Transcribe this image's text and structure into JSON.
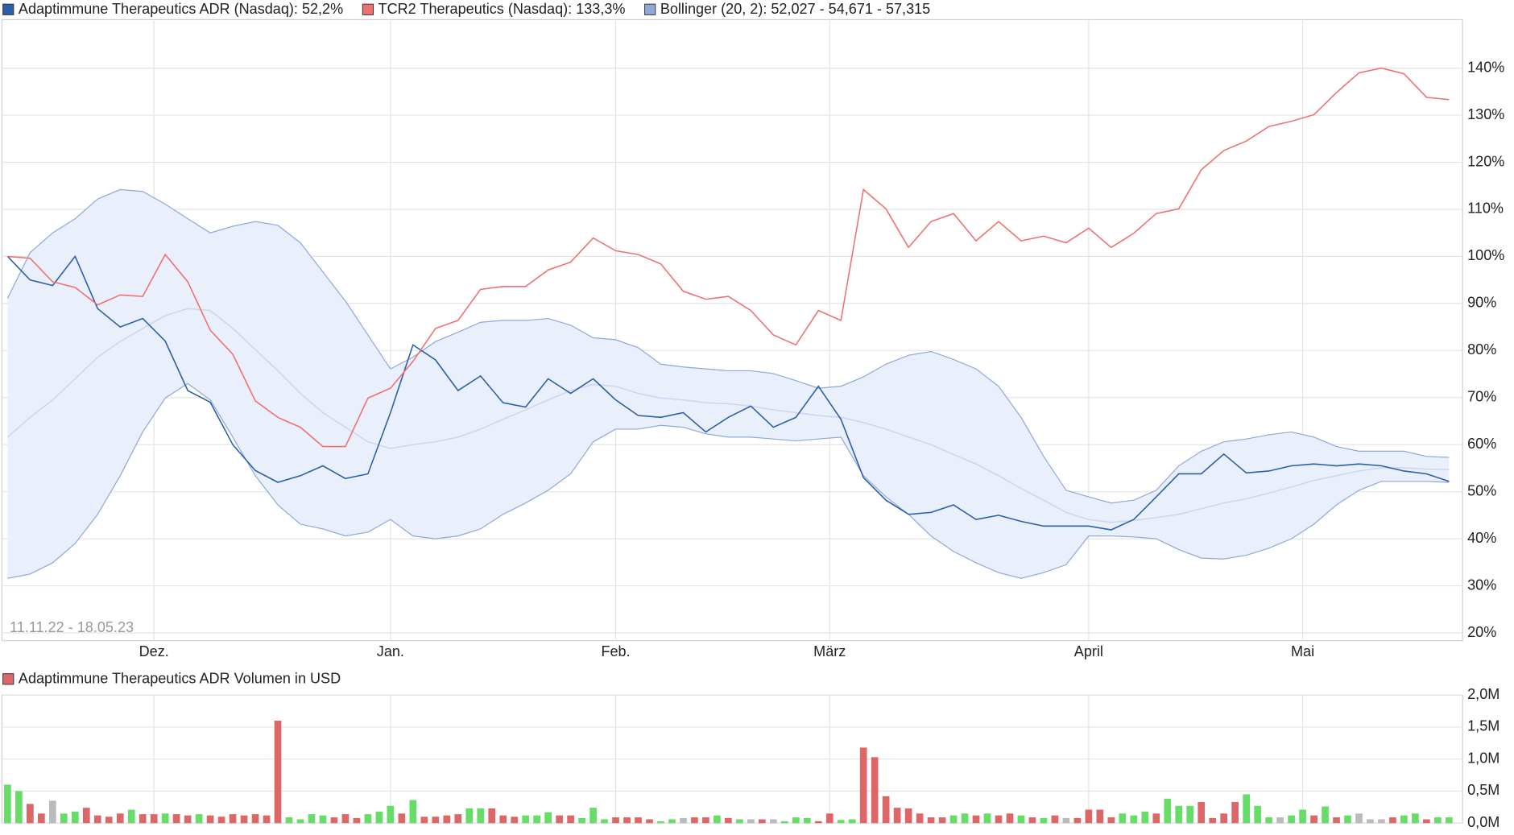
{
  "chart_data": [
    {
      "type": "line",
      "annotation": "11.11.22 - 18.05.23",
      "x": [
        0,
        2,
        4,
        6,
        8,
        10,
        12,
        14,
        16,
        18,
        20,
        22,
        24,
        26,
        28,
        30,
        32,
        34,
        36,
        38,
        40,
        42,
        44,
        46,
        48,
        50,
        52,
        54,
        56,
        58,
        60,
        62,
        64,
        66,
        68,
        70,
        72,
        74,
        76,
        78,
        80,
        82,
        84,
        86,
        88,
        90,
        92,
        94,
        96,
        98,
        100,
        102,
        104,
        106,
        108,
        110,
        112,
        114,
        116,
        118,
        120,
        122,
        124,
        126,
        128
      ],
      "xlim": [
        -0.5,
        129.2
      ],
      "xticks": [
        {
          "value": 13,
          "label": "Dez."
        },
        {
          "value": 34,
          "label": "Jan."
        },
        {
          "value": 54,
          "label": "Feb."
        },
        {
          "value": 73,
          "label": "März"
        },
        {
          "value": 96,
          "label": "April"
        },
        {
          "value": 115,
          "label": "Mai"
        }
      ],
      "ylim": [
        18.35,
        150.3
      ],
      "yticks": [
        {
          "value": 20,
          "label": "20%"
        },
        {
          "value": 30,
          "label": "30%"
        },
        {
          "value": 40,
          "label": "40%"
        },
        {
          "value": 50,
          "label": "50%"
        },
        {
          "value": 60,
          "label": "60%"
        },
        {
          "value": 70,
          "label": "70%"
        },
        {
          "value": 80,
          "label": "80%"
        },
        {
          "value": 90,
          "label": "90%"
        },
        {
          "value": 100,
          "label": "100%"
        },
        {
          "value": 110,
          "label": "110%"
        },
        {
          "value": 120,
          "label": "120%"
        },
        {
          "value": 130,
          "label": "130%"
        },
        {
          "value": 140,
          "label": "140%"
        }
      ],
      "grid": true,
      "series": [
        {
          "name": "Adaptimmune Therapeutics ADR (Nasdaq): 52,2%",
          "color": "#2a5fa8",
          "values": [
            100,
            95,
            93.8,
            100,
            88.9,
            85,
            86.8,
            82,
            71.5,
            69,
            60,
            54.5,
            52,
            53.4,
            55.5,
            52.8,
            53.8,
            66.8,
            81.2,
            78,
            71.5,
            74.6,
            68.9,
            68,
            74,
            70.9,
            74,
            69.5,
            66.2,
            65.8,
            66.8,
            62.7,
            65.8,
            68.2,
            63.7,
            65.8,
            72.4,
            65.4,
            53,
            48.2,
            45.2,
            45.6,
            47.2,
            44.1,
            45,
            43.7,
            42.7,
            42.7,
            42.7,
            41.9,
            44.1,
            48.9,
            53.8,
            53.8,
            58,
            54,
            54.4,
            55.5,
            55.9,
            55.5,
            55.9,
            55.5,
            54.4,
            53.8,
            52.2
          ]
        },
        {
          "name": "TCR2 Therapeutics (Nasdaq): 133,3%",
          "color": "#f07070",
          "values": [
            100,
            99.6,
            94.6,
            93.4,
            89.7,
            91.8,
            91.5,
            100.4,
            94.6,
            84.3,
            79.2,
            69.3,
            65.8,
            63.7,
            59.6,
            59.6,
            69.9,
            72,
            77.7,
            84.7,
            86.4,
            93,
            93.6,
            93.6,
            97.1,
            98.8,
            103.9,
            101.2,
            100.4,
            98.4,
            92.6,
            90.9,
            91.5,
            88.5,
            83.3,
            81.2,
            88.5,
            86.4,
            114.2,
            110.1,
            101.9,
            107.4,
            109.1,
            103.3,
            107.4,
            103.3,
            104.3,
            102.9,
            106,
            101.9,
            104.9,
            109.1,
            110.1,
            118.4,
            122.5,
            124.5,
            127.6,
            128.7,
            130.1,
            134.8,
            139,
            140,
            138.8,
            133.8,
            133.3
          ]
        }
      ],
      "bands": {
        "name": "Bollinger (20, 2): 52,027 - 54,671 - 57,315",
        "color": "#8fa8d8",
        "fill": "#e9effb",
        "middle_color": "#c9d5ee",
        "upper": [
          91.1,
          100.8,
          105,
          108,
          112.2,
          114.2,
          113.8,
          111.1,
          108,
          105,
          106.4,
          107.4,
          106.6,
          102.9,
          96.7,
          90.5,
          83.3,
          76.1,
          78.6,
          81.9,
          83.9,
          86,
          86.4,
          86.4,
          86.8,
          85.4,
          82.7,
          82.3,
          80.6,
          77.1,
          76.5,
          76.1,
          75.7,
          75.7,
          75.1,
          73.6,
          72,
          72.4,
          74.4,
          77.1,
          79,
          79.8,
          78.1,
          76.1,
          72.4,
          65.8,
          57.5,
          50.3,
          48.9,
          47.6,
          48.2,
          50.3,
          55.5,
          58.6,
          60.6,
          61.2,
          62.1,
          62.7,
          61.6,
          59.6,
          58.6,
          58.6,
          58.6,
          57.5,
          57.3
        ],
        "middle": [
          61.6,
          65.8,
          69.5,
          74,
          78.6,
          81.9,
          84.7,
          87.4,
          88.9,
          88.5,
          84.7,
          80.2,
          75.7,
          70.9,
          66.8,
          63.7,
          60.6,
          59.2,
          60,
          60.6,
          61.6,
          63.3,
          65.4,
          67.4,
          69.5,
          71.5,
          72.8,
          72.4,
          70.9,
          69.9,
          69.5,
          68.9,
          68.7,
          68.2,
          67.4,
          66.8,
          66.2,
          65.8,
          64.7,
          63.3,
          61.6,
          60,
          57.9,
          55.9,
          53.4,
          50.7,
          48.2,
          45.6,
          44.1,
          43.5,
          43.9,
          44.5,
          45.2,
          46.4,
          47.6,
          48.5,
          49.7,
          51,
          52.4,
          53.4,
          54.4,
          55.1,
          55.1,
          54.8,
          54.7
        ],
        "lower": [
          31.6,
          32.5,
          34.9,
          39,
          45.2,
          53.4,
          62.7,
          69.9,
          73,
          69.5,
          61.6,
          53.4,
          47.2,
          43.1,
          42.1,
          40.6,
          41.4,
          44.1,
          40.6,
          40,
          40.6,
          42.1,
          45.2,
          47.6,
          50.3,
          53.8,
          60.6,
          63.3,
          63.3,
          64.1,
          63.7,
          62.3,
          61.6,
          61.6,
          61.2,
          60.8,
          61.2,
          61.6,
          53.4,
          48.9,
          45.2,
          40.6,
          37.3,
          34.9,
          32.8,
          31.6,
          32.8,
          34.5,
          40.6,
          40.6,
          40.4,
          40,
          37.7,
          35.9,
          35.7,
          36.5,
          38,
          40,
          43.1,
          47.2,
          50.3,
          52.2,
          52.2,
          52.2,
          52
        ]
      }
    },
    {
      "type": "bar",
      "title": "Adaptimmune Therapeutics ADR Volumen in USD",
      "color": "#dd6666",
      "x": [
        0,
        1,
        2,
        3,
        4,
        5,
        6,
        7,
        8,
        9,
        10,
        11,
        12,
        13,
        14,
        15,
        16,
        17,
        18,
        19,
        20,
        21,
        22,
        23,
        24,
        25,
        26,
        27,
        28,
        29,
        30,
        31,
        32,
        33,
        34,
        35,
        36,
        37,
        38,
        39,
        40,
        41,
        42,
        43,
        44,
        45,
        46,
        47,
        48,
        49,
        50,
        51,
        52,
        53,
        54,
        55,
        56,
        57,
        58,
        59,
        60,
        61,
        62,
        63,
        64,
        65,
        66,
        67,
        68,
        69,
        70,
        71,
        72,
        73,
        74,
        75,
        76,
        77,
        78,
        79,
        80,
        81,
        82,
        83,
        84,
        85,
        86,
        87,
        88,
        89,
        90,
        91,
        92,
        93,
        94,
        95,
        96,
        97,
        98,
        99,
        100,
        101,
        102,
        103,
        104,
        105,
        106,
        107,
        108,
        109,
        110,
        111,
        112,
        113,
        114,
        115,
        116,
        117,
        118,
        119,
        120,
        121,
        122,
        123,
        124,
        125,
        126,
        127,
        128
      ],
      "xlim": [
        -0.5,
        129.2
      ],
      "ylim": [
        0,
        2
      ],
      "yticks": [
        {
          "value": 0,
          "label": "0,0M"
        },
        {
          "value": 0.5,
          "label": "0,5M"
        },
        {
          "value": 1,
          "label": "1,0M"
        },
        {
          "value": 1.5,
          "label": "1,5M"
        },
        {
          "value": 2,
          "label": "2,0M"
        }
      ],
      "grid": true,
      "values": [
        0.6,
        0.5,
        0.3,
        0.15,
        0.35,
        0.15,
        0.18,
        0.24,
        0.12,
        0.1,
        0.15,
        0.21,
        0.14,
        0.14,
        0.15,
        0.14,
        0.12,
        0.14,
        0.12,
        0.1,
        0.14,
        0.12,
        0.14,
        0.12,
        1.6,
        0.09,
        0.06,
        0.14,
        0.12,
        0.09,
        0.14,
        0.08,
        0.14,
        0.18,
        0.27,
        0.15,
        0.36,
        0.1,
        0.1,
        0.12,
        0.14,
        0.23,
        0.23,
        0.23,
        0.12,
        0.1,
        0.12,
        0.12,
        0.17,
        0.12,
        0.12,
        0.08,
        0.24,
        0.06,
        0.09,
        0.09,
        0.09,
        0.06,
        0.03,
        0.06,
        0.08,
        0.09,
        0.09,
        0.12,
        0.08,
        0.06,
        0.06,
        0.06,
        0.06,
        0.03,
        0.09,
        0.08,
        0.03,
        0.15,
        0.05,
        0.06,
        1.18,
        1.03,
        0.42,
        0.24,
        0.23,
        0.15,
        0.09,
        0.09,
        0.12,
        0.15,
        0.12,
        0.15,
        0.12,
        0.15,
        0.12,
        0.09,
        0.08,
        0.12,
        0.08,
        0.08,
        0.21,
        0.21,
        0.09,
        0.15,
        0.12,
        0.18,
        0.15,
        0.38,
        0.27,
        0.27,
        0.33,
        0.08,
        0.15,
        0.33,
        0.45,
        0.27,
        0.09,
        0.09,
        0.12,
        0.21,
        0.12,
        0.26,
        0.09,
        0.12,
        0.15,
        0.06,
        0.06,
        0.09,
        0.12,
        0.15,
        0.06,
        0.09,
        0.09
      ],
      "colors": [
        "#6d6",
        "#6d6",
        "#d66",
        "#d66",
        "#bbb",
        "#6d6",
        "#6d6",
        "#d66",
        "#d66",
        "#d66",
        "#d66",
        "#6d6",
        "#d66",
        "#d66",
        "#6d6",
        "#d66",
        "#d66",
        "#6d6",
        "#d66",
        "#d66",
        "#d66",
        "#d66",
        "#d66",
        "#d66",
        "#d66",
        "#6d6",
        "#6d6",
        "#6d6",
        "#6d6",
        "#d66",
        "#d66",
        "#d66",
        "#6d6",
        "#6d6",
        "#6d6",
        "#d66",
        "#6d6",
        "#d66",
        "#d66",
        "#d66",
        "#d66",
        "#6d6",
        "#6d6",
        "#d66",
        "#d66",
        "#d66",
        "#6d6",
        "#6d6",
        "#6d6",
        "#d66",
        "#d66",
        "#6d6",
        "#6d6",
        "#6d6",
        "#d66",
        "#d66",
        "#d66",
        "#d66",
        "#6d6",
        "#6d6",
        "#bbb",
        "#d66",
        "#d66",
        "#6d6",
        "#d66",
        "#6d6",
        "#bbb",
        "#d66",
        "#bbb",
        "#6d6",
        "#6d6",
        "#6d6",
        "#d66",
        "#d66",
        "#6d6",
        "#6d6",
        "#d66",
        "#d66",
        "#d66",
        "#d66",
        "#d66",
        "#d66",
        "#d66",
        "#d66",
        "#6d6",
        "#6d6",
        "#d66",
        "#6d6",
        "#d66",
        "#d66",
        "#6d6",
        "#d66",
        "#6d6",
        "#d66",
        "#bbb",
        "#d66",
        "#d66",
        "#d66",
        "#d66",
        "#6d6",
        "#6d6",
        "#6d6",
        "#d66",
        "#6d6",
        "#6d6",
        "#6d6",
        "#d66",
        "#d66",
        "#d66",
        "#d66",
        "#6d6",
        "#6d6",
        "#6d6",
        "#bbb",
        "#6d6",
        "#6d6",
        "#d66",
        "#6d6",
        "#d66",
        "#6d6",
        "#bbb",
        "#bbb",
        "#bbb",
        "#d66",
        "#6d6",
        "#6d6",
        "#d66",
        "#6d6",
        "#6d6"
      ]
    }
  ]
}
